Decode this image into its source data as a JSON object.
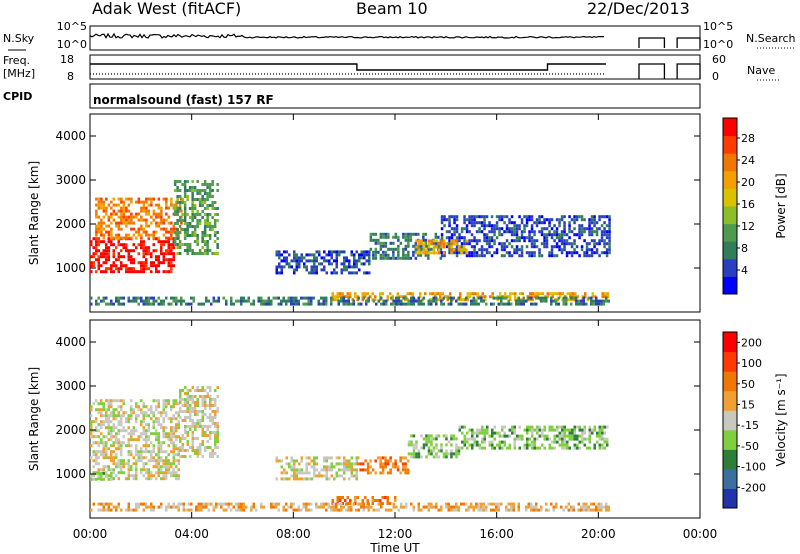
{
  "header": {
    "title": "Adak West (fitACF)",
    "beam": "Beam 10",
    "date": "22/Dec/2013"
  },
  "summary": {
    "nsky_label": "N.Sky",
    "nsky_ticks": [
      "10^5",
      "10^0"
    ],
    "nsearch_label": "N.Search",
    "nsearch_ticks": [
      "10^5",
      "10^0"
    ],
    "freq_label": "Freq.",
    "freq_unit": "[MHz]",
    "freq_ticks": [
      "18",
      "8"
    ],
    "nave_label": "Nave",
    "nave_ticks": [
      "60",
      "0"
    ],
    "cpid_label": "CPID",
    "cpid_text": "normalsound (fast) 157 RF"
  },
  "colors": {
    "power": [
      "#0000ff",
      "#2a3fbf",
      "#2f7d5a",
      "#4f9a4f",
      "#8bbf2a",
      "#d9c200",
      "#f4a000",
      "#f07800",
      "#ff3c00",
      "#ff0000"
    ],
    "velocity": [
      "#2233aa",
      "#3a6fa0",
      "#2f7d3a",
      "#7fcf3f",
      "#c8c8c0",
      "#f0a030",
      "#f07800",
      "#ff3a00",
      "#ff0000"
    ]
  },
  "chart_data": [
    {
      "type": "heatmap",
      "panel": "power",
      "ylabel": "Slant Range [km]",
      "x_ticks": [
        "00:00",
        "04:00",
        "08:00",
        "12:00",
        "16:00",
        "20:00",
        "00:00"
      ],
      "y_ticks": [
        "1000",
        "2000",
        "3000",
        "4000"
      ],
      "ylim": [
        0,
        4500
      ],
      "colorbar_label": "Power [dB]",
      "colorbar_ticks": [
        "28",
        "24",
        "20",
        "16",
        "12",
        "8",
        "4"
      ],
      "regions": [
        {
          "t": [
            0.0,
            3.3
          ],
          "r": [
            900,
            1700
          ],
          "level": 9
        },
        {
          "t": [
            0.2,
            3.6
          ],
          "r": [
            1700,
            2600
          ],
          "level": 7
        },
        {
          "t": [
            3.3,
            5.0
          ],
          "r": [
            1300,
            3000
          ],
          "level": 3
        },
        {
          "t": [
            7.3,
            11.0
          ],
          "r": [
            900,
            1400
          ],
          "level": 1
        },
        {
          "t": [
            11.0,
            13.8
          ],
          "r": [
            1200,
            1800
          ],
          "level": 2
        },
        {
          "t": [
            13.8,
            20.4
          ],
          "r": [
            1300,
            2200
          ],
          "level": 1
        },
        {
          "t": [
            12.8,
            14.8
          ],
          "r": [
            1350,
            1650
          ],
          "level": 6
        },
        {
          "t": [
            9.5,
            20.4
          ],
          "r": [
            250,
            450
          ],
          "level": 6
        },
        {
          "t": [
            0.0,
            20.4
          ],
          "r": [
            200,
            350
          ],
          "level": 2
        }
      ]
    },
    {
      "type": "heatmap",
      "panel": "velocity",
      "ylabel": "Slant Range [km]",
      "xlabel": "Time UT",
      "x_ticks": [
        "00:00",
        "04:00",
        "08:00",
        "12:00",
        "16:00",
        "20:00",
        "00:00"
      ],
      "y_ticks": [
        "1000",
        "2000",
        "3000",
        "4000"
      ],
      "ylim": [
        0,
        4500
      ],
      "colorbar_label": "Velocity [m s⁻¹]",
      "colorbar_ticks": [
        "200",
        "100",
        "50",
        "15",
        "-15",
        "-50",
        "-100",
        "-200"
      ],
      "regions": [
        {
          "t": [
            0.0,
            3.5
          ],
          "r": [
            900,
            2700
          ],
          "level": 4
        },
        {
          "t": [
            0.0,
            0.8
          ],
          "r": [
            850,
            1050
          ],
          "level": 3
        },
        {
          "t": [
            3.5,
            5.0
          ],
          "r": [
            1400,
            3000
          ],
          "level": 4
        },
        {
          "t": [
            7.3,
            10.5
          ],
          "r": [
            900,
            1400
          ],
          "level": 4
        },
        {
          "t": [
            10.5,
            12.5
          ],
          "r": [
            1000,
            1400
          ],
          "level": 6
        },
        {
          "t": [
            12.5,
            14.5
          ],
          "r": [
            1400,
            1900
          ],
          "level": 3
        },
        {
          "t": [
            14.5,
            20.4
          ],
          "r": [
            1600,
            2100
          ],
          "level": 3
        },
        {
          "t": [
            9.5,
            12.0
          ],
          "r": [
            300,
            500
          ],
          "level": 6
        },
        {
          "t": [
            0.0,
            20.4
          ],
          "r": [
            200,
            350
          ],
          "level": 5
        }
      ]
    }
  ]
}
